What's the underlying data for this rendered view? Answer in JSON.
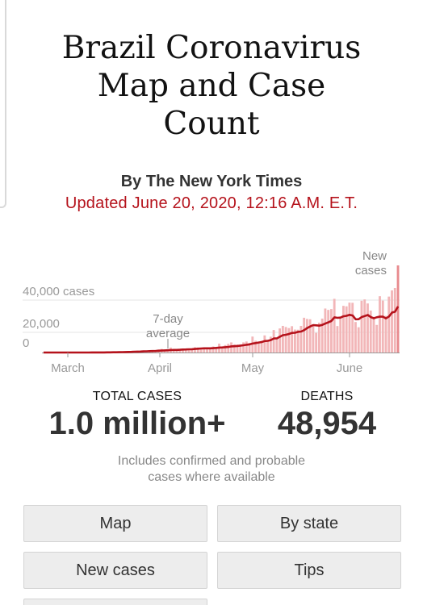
{
  "header": {
    "title_lines": [
      "Brazil Coronavirus",
      "Map and Case",
      "Count"
    ],
    "byline": "By The New York Times",
    "updated": "Updated June 20, 2020, 12:16 A.M. E.T."
  },
  "chart_data": {
    "type": "bar",
    "title": "",
    "ylim": [
      0,
      55000
    ],
    "y_ticks": [
      {
        "value": 0,
        "label": "0"
      },
      {
        "value": 20000,
        "label": "20,000"
      },
      {
        "value": 40000,
        "label": "40,000 cases"
      }
    ],
    "x_ticks": [
      "March",
      "April",
      "May",
      "June"
    ],
    "bar_label": "New cases",
    "line_label": "7-day average",
    "series": [
      {
        "name": "New cases",
        "type": "bar",
        "x_start": "2020-02-26",
        "values": [
          1,
          0,
          0,
          0,
          0,
          0,
          1,
          2,
          5,
          5,
          5,
          12,
          13,
          20,
          27,
          38,
          44,
          51,
          94,
          136,
          97,
          285,
          291,
          362,
          475,
          523,
          618,
          704,
          728,
          778,
          1032,
          1116,
          1146,
          1222,
          1154,
          1208,
          1119,
          1074,
          1930,
          2210,
          1832,
          1879,
          3058,
          2105,
          1261,
          1442,
          1238,
          1927,
          2498,
          2089,
          3257,
          3153,
          2917,
          2055,
          1927,
          2336,
          3735,
          3503,
          5514,
          3379,
          4613,
          5385,
          6276,
          5097,
          4970,
          5096,
          6294,
          6835,
          5939,
          9888,
          7288,
          6710,
          7218,
          10611,
          7846,
          9818,
          13944,
          9256,
          14919,
          16517,
          15813,
          15157,
          16324,
          14228,
          14143,
          16508,
          21550,
          20803,
          20599,
          17253,
          12214,
          18508,
          21022,
          27263,
          26417,
          26928,
          33274,
          16409,
          22202,
          28936,
          28633,
          30925,
          30830,
          18912,
          15654,
          32091,
          32913,
          30412,
          25982,
          21704,
          17110,
          34918,
          32188,
          22765,
          34666,
          38500,
          40000,
          54000
        ]
      },
      {
        "name": "7-day average",
        "type": "line",
        "values": [
          0,
          0,
          0,
          0,
          0,
          0,
          0,
          1,
          2,
          3,
          4,
          6,
          8,
          11,
          15,
          20,
          27,
          33,
          42,
          55,
          68,
          91,
          115,
          142,
          175,
          212,
          270,
          322,
          360,
          408,
          479,
          544,
          619,
          699,
          766,
          838,
          906,
          968,
          1082,
          1186,
          1284,
          1378,
          1499,
          1583,
          1610,
          1712,
          1829,
          1924,
          2003,
          2074,
          2200,
          2349,
          2484,
          2600,
          2593,
          2606,
          2681,
          2858,
          3034,
          3168,
          3288,
          3437,
          3802,
          3921,
          4034,
          4269,
          4518,
          4817,
          5048,
          5568,
          5864,
          6203,
          6486,
          7087,
          7258,
          7710,
          8680,
          8771,
          9789,
          10729,
          11015,
          11487,
          12169,
          12241,
          12798,
          12998,
          13843,
          15150,
          16129,
          17003,
          16839,
          16650,
          17149,
          17943,
          18707,
          19567,
          21810,
          21495,
          21673,
          22441,
          22751,
          23369,
          22934,
          20594,
          20628,
          21980,
          22605,
          23248,
          21962,
          21233,
          21869,
          22266,
          22190,
          21141,
          22358,
          24751,
          25294,
          28530
        ]
      }
    ],
    "colors": {
      "bars": "#f2b6b8",
      "line": "#b5121b",
      "last_bar": "#e88a8e"
    }
  },
  "stats": {
    "cases": {
      "label": "TOTAL CASES",
      "value": "1.0 million+"
    },
    "deaths": {
      "label": "DEATHS",
      "value": "48,954"
    }
  },
  "note": {
    "lines": [
      "Includes confirmed and probable",
      "cases where available"
    ]
  },
  "buttons": {
    "map": "Map",
    "by_state": "By state",
    "new_cases": "New cases",
    "tips": "Tips"
  }
}
